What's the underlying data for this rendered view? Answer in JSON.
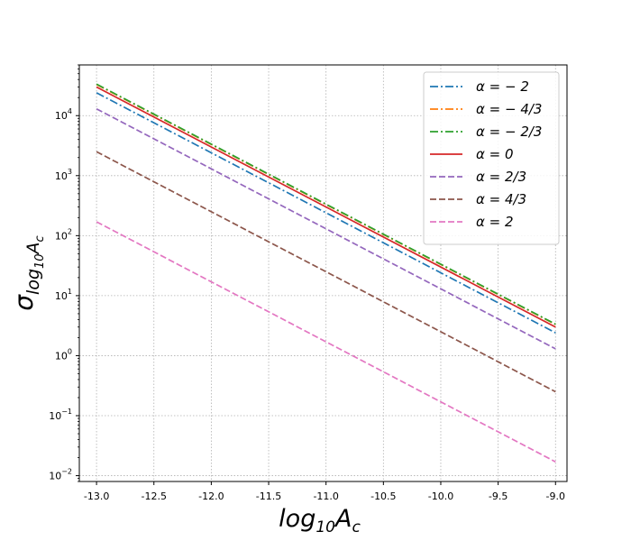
{
  "chart_data": {
    "type": "line",
    "title": "",
    "xlabel": "log10Ac",
    "ylabel": "σ log10Ac",
    "x_scale": "linear",
    "y_scale": "log",
    "xlim": [
      -13.15,
      -8.9
    ],
    "ylim": [
      0.008,
      70000
    ],
    "grid": true,
    "legend_position": "top-right",
    "x_ticks": [
      -13.0,
      -12.5,
      -12.0,
      -11.5,
      -11.0,
      -10.5,
      -10.0,
      -9.5,
      -9.0
    ],
    "x_tick_labels": [
      "-13.0",
      "-12.5",
      "-12.0",
      "-11.5",
      "-11.0",
      "-10.5",
      "-10.0",
      "-9.5",
      "-9.0"
    ],
    "y_ticks": [
      0.01,
      0.1,
      1,
      10,
      100,
      1000,
      10000
    ],
    "y_tick_labels": [
      {
        "base": "10",
        "exp": "−2"
      },
      {
        "base": "10",
        "exp": "−1"
      },
      {
        "base": "10",
        "exp": "0"
      },
      {
        "base": "10",
        "exp": "1"
      },
      {
        "base": "10",
        "exp": "2"
      },
      {
        "base": "10",
        "exp": "3"
      },
      {
        "base": "10",
        "exp": "4"
      }
    ],
    "series": [
      {
        "name": "α = − 2",
        "color": "#1f77b4",
        "dash": "dashdot",
        "x": [
          -13.0,
          -9.0
        ],
        "y": [
          24000,
          2.4
        ]
      },
      {
        "name": "α = − 4/3",
        "color": "#ff7f0e",
        "dash": "dashdot",
        "x": [
          -13.0,
          -9.0
        ],
        "y": [
          33000,
          3.3
        ]
      },
      {
        "name": "α = − 2/3",
        "color": "#2ca02c",
        "dash": "dashdot",
        "x": [
          -13.0,
          -9.0
        ],
        "y": [
          33500,
          3.35
        ]
      },
      {
        "name": "α = 0",
        "color": "#d62728",
        "dash": "solid",
        "x": [
          -13.0,
          -9.0
        ],
        "y": [
          30000,
          3.0
        ]
      },
      {
        "name": "α = 2/3",
        "color": "#9467bd",
        "dash": "dashed",
        "x": [
          -13.0,
          -9.0
        ],
        "y": [
          13000,
          1.3
        ]
      },
      {
        "name": "α = 4/3",
        "color": "#8c564b",
        "dash": "dashed",
        "x": [
          -13.0,
          -9.0
        ],
        "y": [
          2500,
          0.25
        ]
      },
      {
        "name": "α = 2",
        "color": "#e377c2",
        "dash": "dashed",
        "x": [
          -13.0,
          -9.0
        ],
        "y": [
          170,
          0.017
        ]
      }
    ]
  }
}
